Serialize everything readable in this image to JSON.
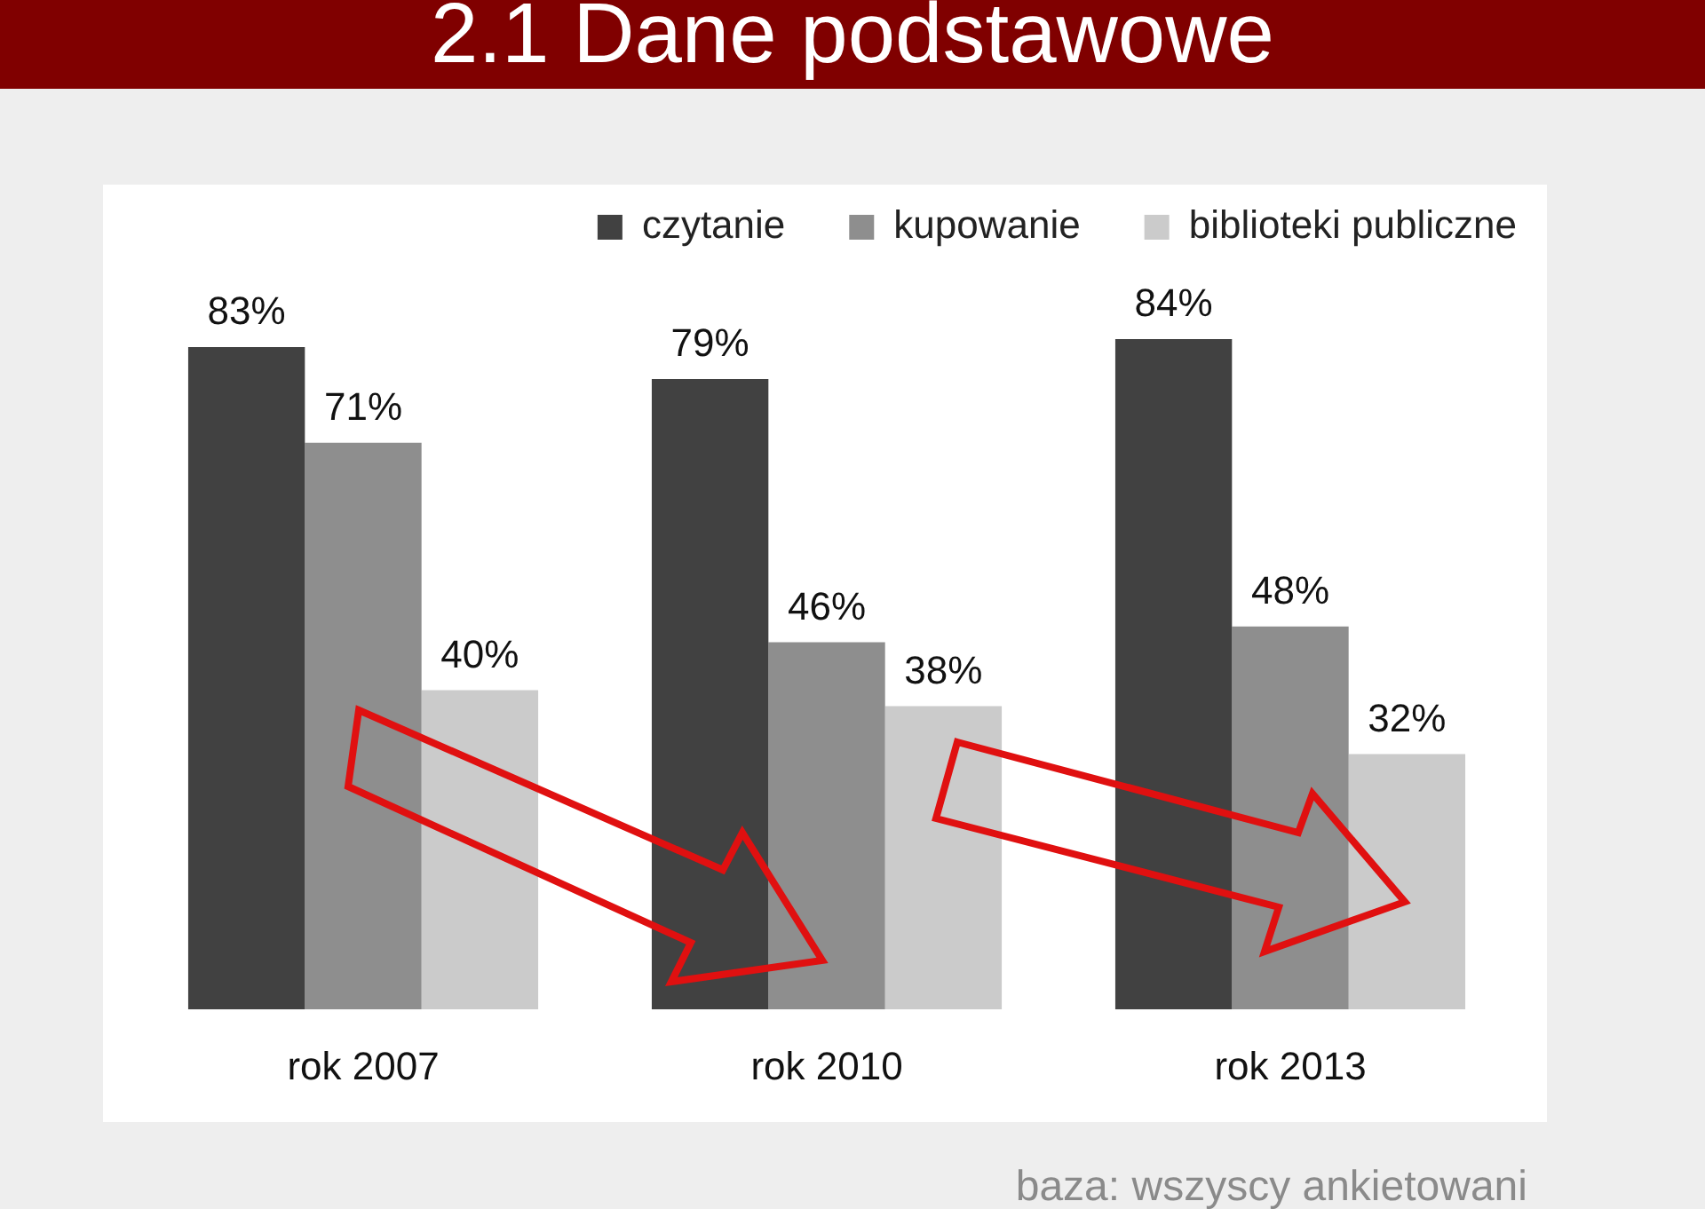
{
  "chart_data": {
    "type": "bar",
    "title": "2.1 Dane podstawowe",
    "categories": [
      "rok 2007",
      "rok 2010",
      "rok 2013"
    ],
    "series": [
      {
        "name": "czytanie",
        "color": "#414141",
        "values": [
          83,
          79,
          84
        ],
        "value_labels": [
          "83%",
          "79%",
          "84%"
        ]
      },
      {
        "name": "kupowanie",
        "color": "#8e8e8e",
        "values": [
          71,
          46,
          48
        ],
        "value_labels": [
          "71%",
          "46%",
          "48%"
        ]
      },
      {
        "name": "biblioteki publiczne",
        "color": "#cbcbcb",
        "values": [
          40,
          38,
          32
        ],
        "value_labels": [
          "40%",
          "38%",
          "32%"
        ]
      }
    ],
    "legend": "top right",
    "grid": false,
    "tick_labels": "x",
    "annotations": [
      "baza: wszyscy ankietowani"
    ]
  }
}
